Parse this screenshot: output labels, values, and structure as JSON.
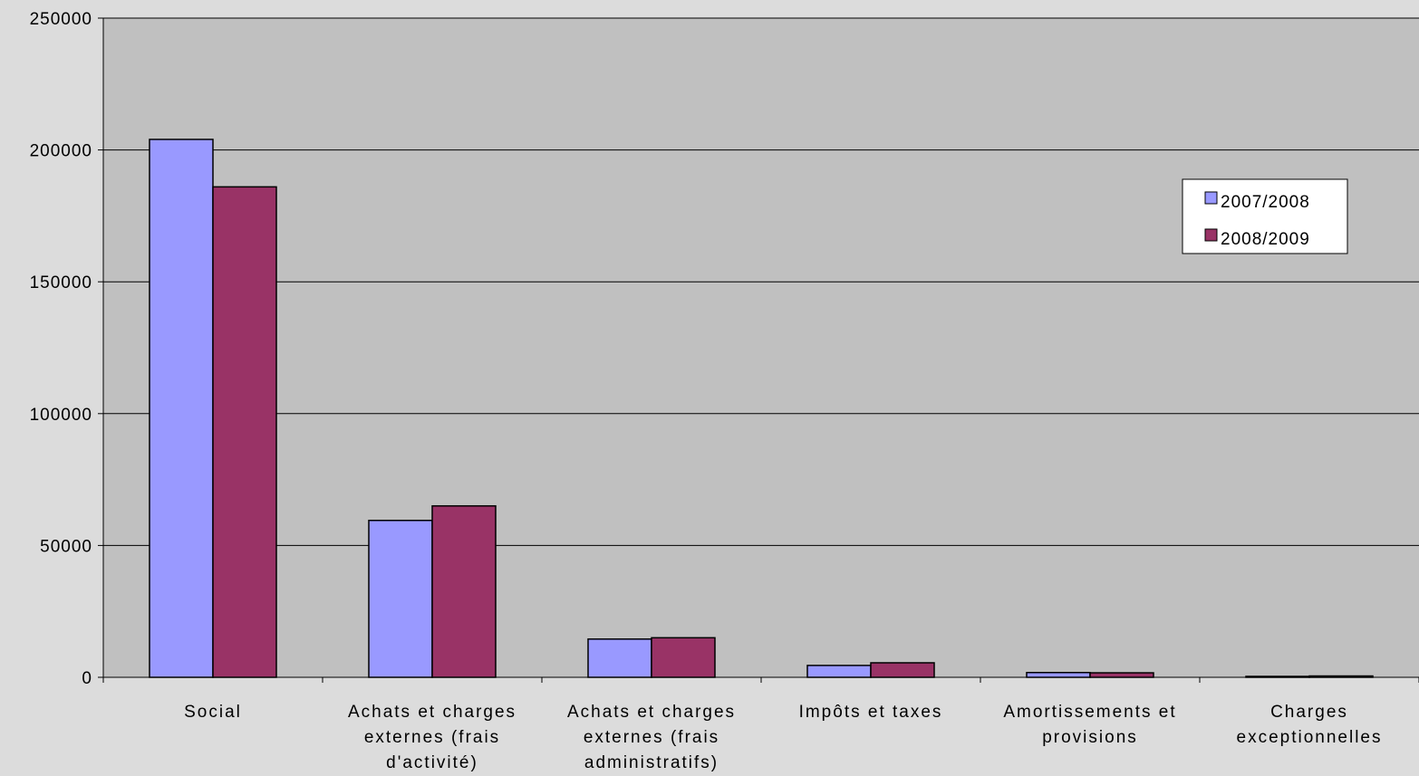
{
  "chart_data": {
    "type": "bar",
    "categories": [
      [
        "Social"
      ],
      [
        "Achats et charges",
        "externes (frais",
        "d'activité)"
      ],
      [
        "Achats et charges",
        "externes (frais",
        "administratifs)"
      ],
      [
        "Impôts et taxes"
      ],
      [
        "Amortissements et",
        "provisions"
      ],
      [
        "Charges",
        "exceptionnelles"
      ]
    ],
    "series": [
      {
        "name": "2007/2008",
        "color": "#9999ff",
        "values": [
          204000,
          59500,
          14500,
          4500,
          1800,
          300
        ]
      },
      {
        "name": "2008/2009",
        "color": "#993366",
        "values": [
          186000,
          65000,
          15000,
          5500,
          1700,
          500
        ]
      }
    ],
    "yticks": [
      "0",
      "50000",
      "100000",
      "150000",
      "200000",
      "250000"
    ],
    "ylim": [
      0,
      250000
    ],
    "grid": true,
    "legend_position": "top-right",
    "plot_background": "#c0c0c0"
  }
}
